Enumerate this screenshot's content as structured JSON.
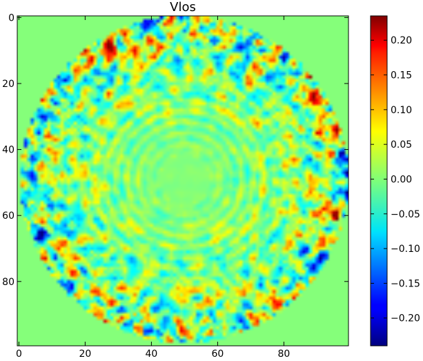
{
  "chart_data": {
    "type": "heatmap",
    "title": "Vlos",
    "grid": false,
    "colormap": "jet",
    "background_value": 0.0,
    "x": {
      "range": [
        -0.5,
        99.5
      ],
      "ticks": [
        0,
        20,
        40,
        60,
        80
      ],
      "tick_labels": [
        "0",
        "20",
        "40",
        "60",
        "80"
      ]
    },
    "y": {
      "range": [
        99.5,
        -0.5
      ],
      "inverted": true,
      "ticks": [
        0,
        20,
        40,
        60,
        80
      ],
      "tick_labels": [
        "0",
        "20",
        "40",
        "60",
        "80"
      ]
    },
    "colorbar": {
      "range": [
        -0.24,
        0.235
      ],
      "ticks": [
        -0.2,
        -0.15,
        -0.1,
        -0.05,
        0.0,
        0.05,
        0.1,
        0.15,
        0.2
      ],
      "tick_labels": [
        "−0.20",
        "−0.15",
        "−0.10",
        "−0.05",
        "0.00",
        "0.05",
        "0.10",
        "0.15",
        "0.20"
      ]
    },
    "disk": {
      "center": [
        50,
        49
      ],
      "radius": 49.5,
      "description_rings_near_center": true
    },
    "grid_size": [
      100,
      100
    ]
  }
}
